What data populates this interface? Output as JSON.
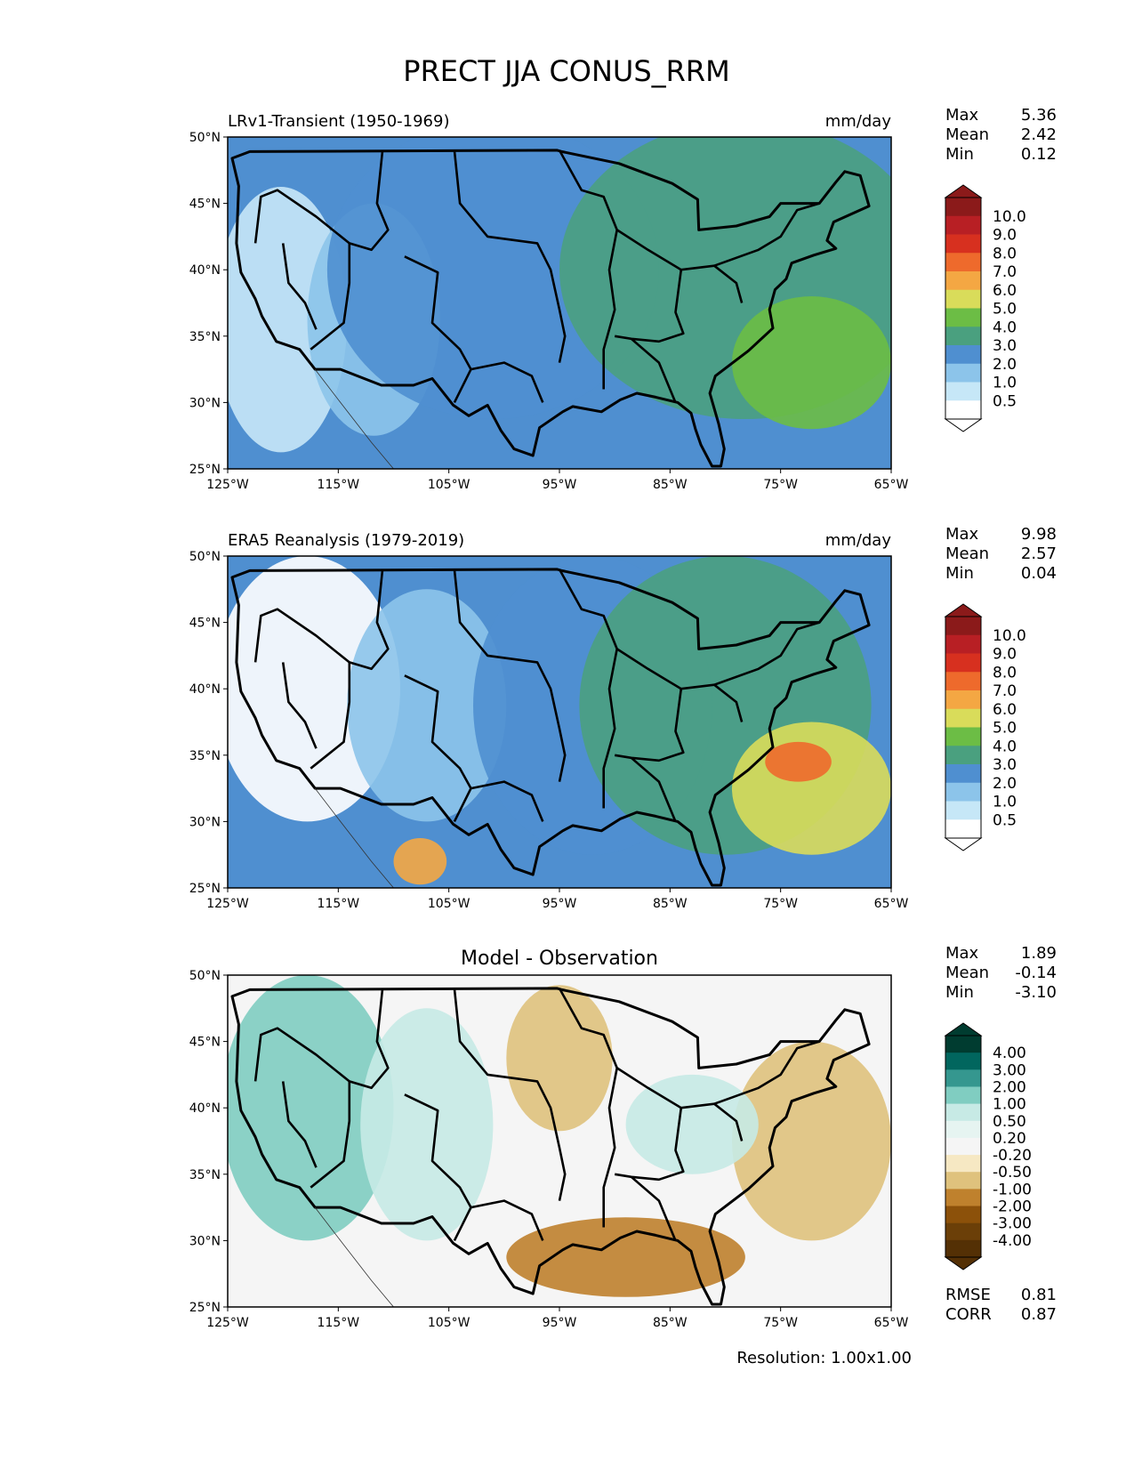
{
  "figure": {
    "title": "PRECT JJA CONUS_RRM",
    "resolution_text": "Resolution: 1.00x1.00"
  },
  "axes": {
    "lat_ticks": [
      "50°N",
      "45°N",
      "40°N",
      "35°N",
      "30°N",
      "25°N"
    ],
    "lon_ticks": [
      "125°W",
      "115°W",
      "105°W",
      "95°W",
      "85°W",
      "75°W",
      "65°W"
    ]
  },
  "panels": [
    {
      "left_title": "LRv1-Transient (1950-1969)",
      "center_title": "",
      "right_title": "mm/day",
      "stats": [
        {
          "label": "Max",
          "value": "5.36"
        },
        {
          "label": "Mean",
          "value": "2.42"
        },
        {
          "label": "Min",
          "value": "0.12"
        }
      ],
      "colorbar_labels": [
        "10.0",
        "9.0",
        "8.0",
        "7.0",
        "6.0",
        "5.0",
        "4.0",
        "3.0",
        "2.0",
        "1.0",
        "0.5"
      ],
      "colorbar_colors": [
        "#8b1a1a",
        "#b81f24",
        "#d7301f",
        "#ee6a2c",
        "#f4a743",
        "#d9dc5a",
        "#6cbd45",
        "#4aa07f",
        "#4f8fd0",
        "#8cc4ea",
        "#c6e7f7",
        "#ffffff"
      ],
      "top_color": "#8b1a1a",
      "bottom_color": "#ffffff"
    },
    {
      "left_title": "ERA5 Reanalysis (1979-2019)",
      "center_title": "",
      "right_title": "mm/day",
      "stats": [
        {
          "label": "Max",
          "value": "9.98"
        },
        {
          "label": "Mean",
          "value": "2.57"
        },
        {
          "label": "Min",
          "value": "0.04"
        }
      ],
      "colorbar_labels": [
        "10.0",
        "9.0",
        "8.0",
        "7.0",
        "6.0",
        "5.0",
        "4.0",
        "3.0",
        "2.0",
        "1.0",
        "0.5"
      ],
      "colorbar_colors": [
        "#8b1a1a",
        "#b81f24",
        "#d7301f",
        "#ee6a2c",
        "#f4a743",
        "#d9dc5a",
        "#6cbd45",
        "#4aa07f",
        "#4f8fd0",
        "#8cc4ea",
        "#c6e7f7",
        "#ffffff"
      ],
      "top_color": "#8b1a1a",
      "bottom_color": "#ffffff"
    },
    {
      "left_title": "",
      "center_title": "Model - Observation",
      "right_title": "",
      "stats": [
        {
          "label": "Max",
          "value": "1.89"
        },
        {
          "label": "Mean",
          "value": "-0.14"
        },
        {
          "label": "Min",
          "value": "-3.10"
        }
      ],
      "colorbar_labels": [
        "4.00",
        "3.00",
        "2.00",
        "1.00",
        "0.50",
        "0.20",
        "-0.20",
        "-0.50",
        "-1.00",
        "-2.00",
        "-3.00",
        "-4.00"
      ],
      "colorbar_colors": [
        "#003c30",
        "#01665e",
        "#35978f",
        "#80cdc1",
        "#c7eae5",
        "#e6f4f1",
        "#f5f5f5",
        "#f6e8c3",
        "#dfc27d",
        "#bf812d",
        "#8c510a",
        "#6b3f08",
        "#543005"
      ],
      "top_color": "#003c30",
      "bottom_color": "#543005",
      "extra_stats": [
        {
          "label": "RMSE",
          "value": "0.81"
        },
        {
          "label": "CORR",
          "value": "0.87"
        }
      ]
    }
  ]
}
